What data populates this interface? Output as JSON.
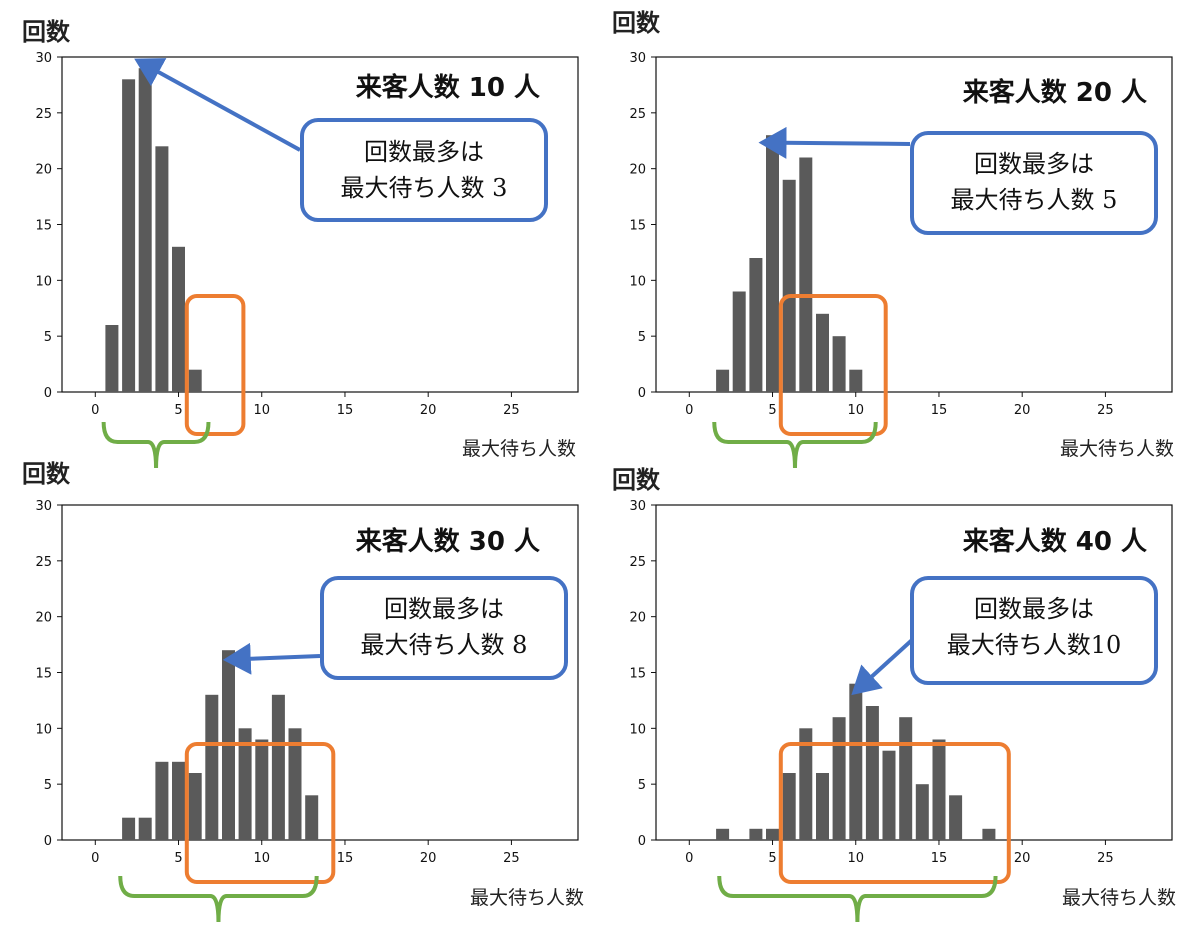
{
  "chart_data": [
    {
      "type": "bar",
      "title": "来客人数 10 人",
      "ylabel": "回数",
      "xlabel": "最大待ち人数",
      "x": [
        1,
        2,
        3,
        4,
        5,
        6
      ],
      "values": [
        6,
        28,
        29,
        22,
        13,
        2
      ],
      "xticks": [
        0,
        5,
        10,
        15,
        20,
        25
      ],
      "yticks": [
        0,
        5,
        10,
        15,
        20,
        25,
        30
      ],
      "xlim": [
        -2,
        29
      ],
      "ylim": [
        0,
        30
      ],
      "callout": {
        "line1": "回数最多は",
        "line2": "最大待ち人数 3"
      },
      "arrow_to": {
        "x": 3,
        "y": 29
      },
      "highlight_range": [
        5.5,
        8.9
      ],
      "brace_range": [
        0.5,
        6.8
      ]
    },
    {
      "type": "bar",
      "title": "来客人数 20 人",
      "ylabel": "回数",
      "xlabel": "最大待ち人数",
      "x": [
        2,
        3,
        4,
        5,
        6,
        7,
        8,
        9,
        10
      ],
      "values": [
        2,
        9,
        12,
        23,
        19,
        21,
        7,
        5,
        2
      ],
      "xticks": [
        0,
        5,
        10,
        15,
        20,
        25
      ],
      "yticks": [
        0,
        5,
        10,
        15,
        20,
        25,
        30
      ],
      "xlim": [
        -2,
        29
      ],
      "ylim": [
        0,
        30
      ],
      "callout": {
        "line1": "回数最多は",
        "line2": "最大待ち人数 5"
      },
      "arrow_to": {
        "x": 5,
        "y": 22.5
      },
      "highlight_range": [
        5.5,
        11.8
      ],
      "brace_range": [
        1.5,
        11.2
      ]
    },
    {
      "type": "bar",
      "title": "来客人数 30 人",
      "ylabel": "回数",
      "xlabel": "最大待ち人数",
      "x": [
        2,
        3,
        4,
        5,
        6,
        7,
        8,
        9,
        10,
        11,
        12,
        13
      ],
      "values": [
        2,
        2,
        7,
        7,
        6,
        13,
        17,
        10,
        9,
        13,
        10,
        4
      ],
      "xticks": [
        0,
        5,
        10,
        15,
        20,
        25
      ],
      "yticks": [
        0,
        5,
        10,
        15,
        20,
        25,
        30
      ],
      "xlim": [
        -2,
        29
      ],
      "ylim": [
        0,
        30
      ],
      "callout": {
        "line1": "回数最多は",
        "line2": "最大待ち人数 8"
      },
      "arrow_to": {
        "x": 8.5,
        "y": 16.4
      },
      "highlight_range": [
        5.5,
        14.3
      ],
      "brace_range": [
        1.5,
        13.3
      ]
    },
    {
      "type": "bar",
      "title": "来客人数 40 人",
      "ylabel": "回数",
      "xlabel": "最大待ち人数",
      "x": [
        2,
        4,
        5,
        6,
        7,
        8,
        9,
        10,
        11,
        12,
        13,
        14,
        15,
        16,
        18
      ],
      "values": [
        1,
        1,
        1,
        6,
        10,
        6,
        11,
        14,
        12,
        8,
        11,
        5,
        9,
        4,
        1
      ],
      "xticks": [
        0,
        5,
        10,
        15,
        20,
        25
      ],
      "yticks": [
        0,
        5,
        10,
        15,
        20,
        25,
        30
      ],
      "xlim": [
        -2,
        29
      ],
      "ylim": [
        0,
        30
      ],
      "callout": {
        "line1": "回数最多は",
        "line2": "最大待ち人数10"
      },
      "arrow_to": {
        "x": 10.2,
        "y": 14.6
      },
      "highlight_range": [
        5.5,
        19.2
      ],
      "brace_range": [
        1.8,
        18.4
      ]
    }
  ],
  "colors": {
    "bar": "#5a5a5a",
    "axes": "#111111",
    "callout_border": "#4472c4",
    "arrow": "#4472c4",
    "highlight": "#ed7d31",
    "brace": "#70ad47"
  }
}
